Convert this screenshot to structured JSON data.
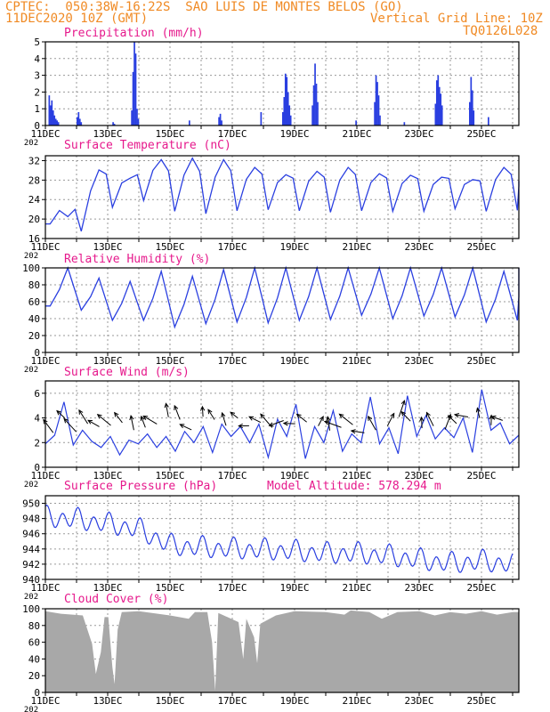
{
  "header": {
    "line1": "CPTEC:  050:38W-16:22S  SAO LUIS DE MONTES BELOS (GO)",
    "line2_left": "11DEC2020 10Z (GMT)",
    "line2_right": "Vertical Grid Line: 10Z",
    "line3_right": "TQ0126L028"
  },
  "colors": {
    "header": "#f08a24",
    "title": "#e6198c",
    "series": "#2a3fe0",
    "cloud": "#a8a8a8"
  },
  "x_axis": {
    "tick_labels": [
      "11DEC",
      "13DEC",
      "15DEC",
      "17DEC",
      "19DEC",
      "21DEC",
      "23DEC",
      "25DEC"
    ],
    "year_fragment": "202"
  },
  "chart_data": [
    {
      "id": "precip",
      "type": "bar",
      "title": "Precipitation (mm/h)",
      "ylim": [
        0,
        5
      ],
      "yticks": [
        "0",
        "1",
        "2",
        "3",
        "4",
        "5"
      ],
      "events": [
        {
          "day": 0.1,
          "values": [
            1.8,
            1.2,
            1.5,
            0.9,
            0.6,
            0.4,
            0.3,
            0.2
          ]
        },
        {
          "day": 1.0,
          "values": [
            0.5,
            0.8,
            0.4,
            0.2
          ]
        },
        {
          "day": 2.15,
          "values": [
            0.2,
            0.1
          ]
        },
        {
          "day": 2.75,
          "values": [
            0.9,
            3.2,
            5.0,
            4.3,
            1.0,
            0.4
          ]
        },
        {
          "day": 4.6,
          "values": [
            0.3
          ]
        },
        {
          "day": 5.55,
          "values": [
            0.5,
            0.7,
            0.3
          ]
        },
        {
          "day": 6.9,
          "values": [
            0.8
          ]
        },
        {
          "day": 7.6,
          "values": [
            0.8,
            1.7,
            3.1,
            2.9,
            2.0,
            1.2,
            0.6
          ]
        },
        {
          "day": 8.55,
          "values": [
            1.2,
            2.4,
            3.7,
            2.5,
            1.4
          ]
        },
        {
          "day": 9.95,
          "values": [
            0.3
          ]
        },
        {
          "day": 10.55,
          "values": [
            1.4,
            3.0,
            2.6,
            1.8,
            0.6
          ]
        },
        {
          "day": 11.5,
          "values": [
            0.2
          ]
        },
        {
          "day": 12.5,
          "values": [
            1.3,
            2.7,
            3.0,
            2.3,
            1.9,
            1.2
          ]
        },
        {
          "day": 13.6,
          "values": [
            1.4,
            2.9,
            2.1,
            0.9
          ]
        },
        {
          "day": 14.2,
          "values": [
            0.5
          ]
        }
      ]
    },
    {
      "id": "temp",
      "type": "line",
      "title": "Surface Temperature (nC)",
      "ylim": [
        16,
        33
      ],
      "yticks": [
        "16",
        "20",
        "24",
        "28",
        "32"
      ],
      "daily_min": [
        19,
        17.5,
        22.4,
        23.8,
        21.6,
        21.1,
        21.7,
        21.9,
        21.7,
        21.4,
        21.7,
        21.6,
        21.6,
        22.1,
        21.6,
        21.8
      ],
      "daily_max": [
        20.5,
        30.1,
        28.4,
        32.2,
        32.5,
        32.2,
        30.6,
        29.1,
        29.8,
        30.6,
        29.3,
        29.0,
        28.6,
        28.1,
        30.6,
        27.8
      ]
    },
    {
      "id": "rh",
      "type": "line",
      "title": "Relative Humidity (%)",
      "ylim": [
        0,
        100
      ],
      "yticks": [
        "0",
        "20",
        "40",
        "60",
        "80",
        "100"
      ],
      "daily_min": [
        55,
        50,
        38,
        38,
        30,
        34,
        36,
        35,
        38,
        39,
        44,
        40,
        43,
        42,
        36,
        38
      ],
      "daily_max": [
        100,
        88,
        84,
        96,
        90,
        98,
        100,
        100,
        100,
        100,
        100,
        100,
        100,
        100,
        96,
        100
      ]
    },
    {
      "id": "wind",
      "type": "line",
      "title": "Surface Wind (m/s)",
      "ylim": [
        0,
        7
      ],
      "yticks": [
        "0",
        "2",
        "4",
        "6"
      ],
      "speeds": [
        1.9,
        2.6,
        5.3,
        1.8,
        3.0,
        2.1,
        1.6,
        2.5,
        1.0,
        2.2,
        1.9,
        2.7,
        1.6,
        2.5,
        1.3,
        2.9,
        2.0,
        3.3,
        1.2,
        3.5,
        2.5,
        3.3,
        2.0,
        3.5,
        0.8,
        3.9,
        2.5,
        5.1,
        0.7,
        3.3,
        2.0,
        4.6,
        1.3,
        2.7,
        2.0,
        5.7,
        1.9,
        3.2,
        1.1,
        5.8,
        2.5,
        4.2,
        2.3,
        3.2,
        2.4,
        4.0,
        1.2,
        6.3,
        3.0,
        3.6,
        1.9,
        2.6
      ]
    },
    {
      "id": "pressure",
      "type": "line",
      "title": "Surface Pressure (hPa)",
      "annotation": "Model Altitude: 578.294 m",
      "ylim": [
        940,
        951
      ],
      "yticks": [
        "940",
        "942",
        "944",
        "946",
        "948",
        "950"
      ],
      "daily_mean": [
        948.2,
        947.9,
        947.3,
        946.6,
        944.5,
        944.2,
        944.0,
        943.9,
        943.7,
        943.4,
        943.4,
        943.1,
        942.6,
        942.1,
        942.4,
        942.0
      ],
      "amplitude": 1.4
    },
    {
      "id": "cloud",
      "type": "area",
      "title": "Cloud Cover (%)",
      "ylim": [
        0,
        100
      ],
      "yticks": [
        "0",
        "20",
        "40",
        "60",
        "80",
        "100"
      ],
      "profile": [
        [
          0,
          97
        ],
        [
          0.5,
          94
        ],
        [
          1.2,
          92
        ],
        [
          1.5,
          58
        ],
        [
          1.62,
          22
        ],
        [
          1.78,
          48
        ],
        [
          1.9,
          90
        ],
        [
          2.02,
          90
        ],
        [
          2.15,
          30
        ],
        [
          2.22,
          10
        ],
        [
          2.32,
          75
        ],
        [
          2.45,
          96
        ],
        [
          3.0,
          97
        ],
        [
          4.0,
          92
        ],
        [
          4.6,
          88
        ],
        [
          4.8,
          96
        ],
        [
          5.2,
          96
        ],
        [
          5.35,
          60
        ],
        [
          5.45,
          2
        ],
        [
          5.55,
          95
        ],
        [
          6.2,
          84
        ],
        [
          6.35,
          40
        ],
        [
          6.45,
          88
        ],
        [
          6.7,
          66
        ],
        [
          6.8,
          35
        ],
        [
          6.9,
          82
        ],
        [
          7.4,
          92
        ],
        [
          8.0,
          97
        ],
        [
          9.0,
          96
        ],
        [
          9.6,
          93
        ],
        [
          9.8,
          98
        ],
        [
          10.4,
          96
        ],
        [
          10.8,
          88
        ],
        [
          11.3,
          96
        ],
        [
          12.0,
          97
        ],
        [
          12.5,
          92
        ],
        [
          13.0,
          96
        ],
        [
          13.5,
          94
        ],
        [
          14.0,
          97
        ],
        [
          14.5,
          93
        ],
        [
          15,
          96
        ]
      ]
    }
  ]
}
